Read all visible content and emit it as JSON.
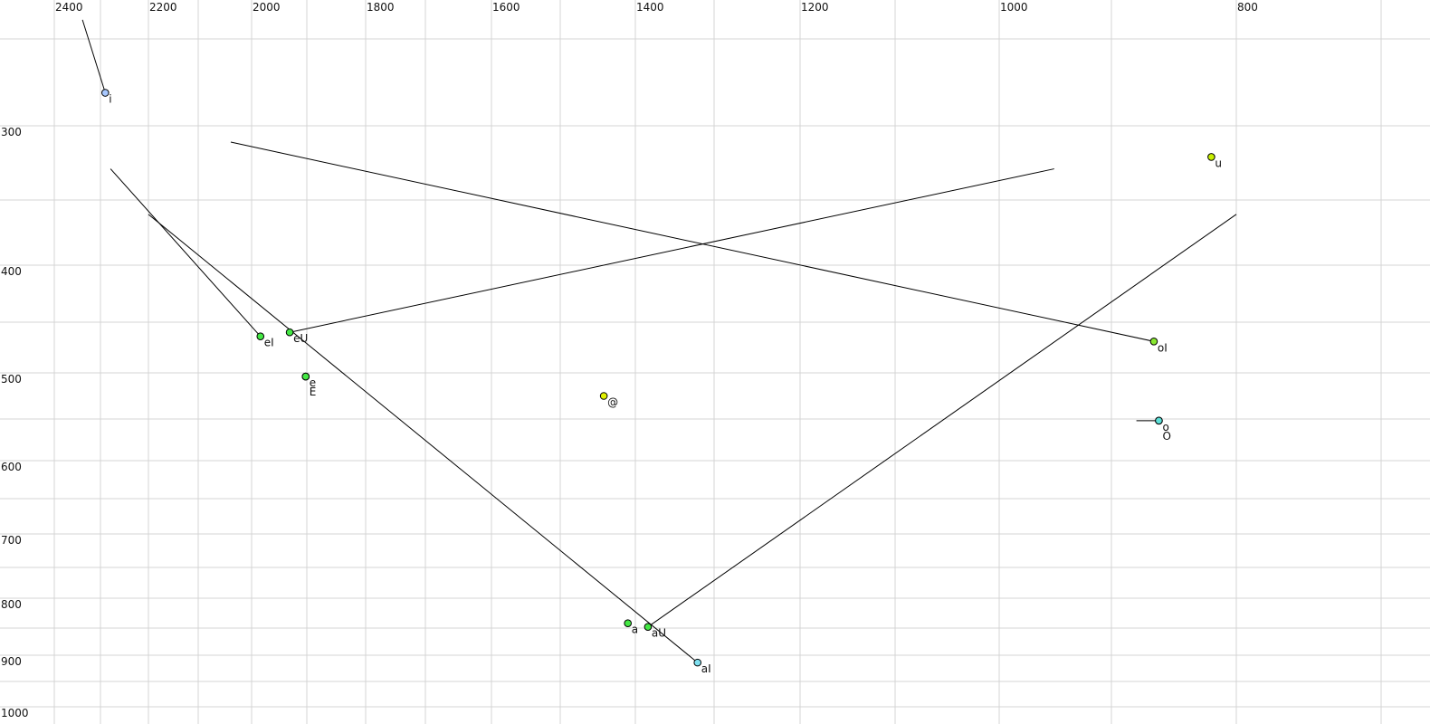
{
  "chart_data": {
    "type": "scatter",
    "title": "",
    "xlabel": "",
    "ylabel": "",
    "x_axis": {
      "quantity": "F2",
      "reversed": true,
      "scale": "nonlinear",
      "range": [
        2400,
        700
      ],
      "tick_labels": [
        2400,
        2200,
        2000,
        1800,
        1600,
        1400,
        1200,
        1000,
        800
      ],
      "gridlines": [
        2400,
        2300,
        2200,
        2100,
        2000,
        1900,
        1800,
        1700,
        1600,
        1500,
        1400,
        1300,
        1200,
        1100,
        1000,
        900,
        800,
        700
      ]
    },
    "y_axis": {
      "quantity": "F1",
      "reversed": true,
      "scale": "nonlinear",
      "range": [
        250,
        1000
      ],
      "tick_labels": [
        300,
        400,
        500,
        600,
        700,
        800,
        900,
        1000
      ],
      "gridlines": [
        250,
        300,
        350,
        400,
        450,
        500,
        550,
        600,
        650,
        700,
        750,
        800,
        850,
        900,
        950,
        1000
      ]
    },
    "grid": true,
    "points": [
      {
        "label": "i",
        "f2": 2290,
        "f1": 281,
        "color": "#a8c8ff",
        "trajectory_start": {
          "f2": 2339,
          "f1": 239
        }
      },
      {
        "label": "eI",
        "f2": 1984,
        "f1": 464,
        "color": "#44e844",
        "trajectory_start": {
          "f2": 2279,
          "f1": 329
        }
      },
      {
        "label": "eU",
        "f2": 1931,
        "f1": 460,
        "color": "#44e844",
        "trajectory_end": {
          "f2": 951,
          "f1": 329
        }
      },
      {
        "label": "e",
        "f2": 1902,
        "f1": 504,
        "color": "#44e844"
      },
      {
        "label": "E",
        "f2": 1902,
        "f1": 504,
        "color": "#44e844",
        "label_below": true
      },
      {
        "label": "@",
        "f2": 1442,
        "f1": 525,
        "color": "#e0f000"
      },
      {
        "label": "a",
        "f2": 1410,
        "f1": 842,
        "color": "#44e844"
      },
      {
        "label": "aU",
        "f2": 1384,
        "f1": 848,
        "color": "#44e844",
        "trajectory_end": {
          "f2": 800,
          "f1": 361
        }
      },
      {
        "label": "aI",
        "f2": 1321,
        "f1": 914,
        "color": "#7fe0f0",
        "trajectory_start": {
          "f2": 2200,
          "f1": 361
        }
      },
      {
        "label": "oI",
        "f2": 866,
        "f1": 469,
        "color": "#88e830",
        "trajectory_start": {
          "f2": 2039,
          "f1": 311
        }
      },
      {
        "label": "o",
        "f2": 862,
        "f1": 552,
        "color": "#5ce0d8",
        "trajectory_start": {
          "f2": 880,
          "f1": 552
        }
      },
      {
        "label": "O",
        "f2": 862,
        "f1": 552,
        "color": "#5ce0d8",
        "label_below": true
      },
      {
        "label": "u",
        "f2": 820,
        "f1": 321,
        "color": "#c8f000"
      }
    ]
  }
}
